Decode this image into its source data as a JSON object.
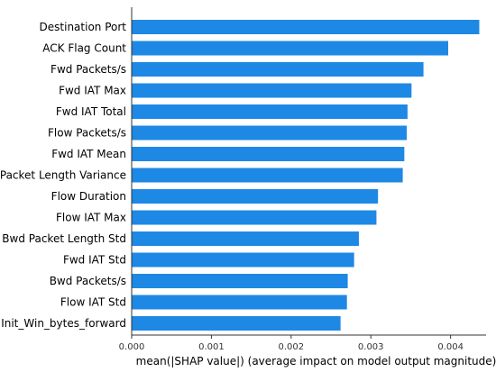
{
  "chart_data": {
    "type": "bar",
    "orientation": "horizontal",
    "categories": [
      "Destination Port",
      "ACK Flag Count",
      "Fwd Packets/s",
      "Fwd IAT Max",
      "Fwd IAT Total",
      "Flow Packets/s",
      "Fwd IAT Mean",
      "Packet Length Variance",
      "Flow Duration",
      "Flow IAT Max",
      "Bwd Packet Length Std",
      "Fwd IAT Std",
      "Bwd Packets/s",
      "Flow IAT Std",
      "Init_Win_bytes_forward"
    ],
    "values": [
      0.00436,
      0.00397,
      0.00366,
      0.00351,
      0.00346,
      0.00345,
      0.00342,
      0.0034,
      0.00309,
      0.00307,
      0.00285,
      0.00279,
      0.00271,
      0.0027,
      0.00262
    ],
    "xlabel": "mean(|SHAP value|) (average impact on model output magnitude)",
    "ylabel": "",
    "title": "",
    "xlim": [
      0,
      0.0044
    ],
    "xticks": [
      0.0,
      0.001,
      0.002,
      0.003,
      0.004
    ],
    "xtick_labels": [
      "0.000",
      "0.001",
      "0.002",
      "0.003",
      "0.004"
    ],
    "grid": false,
    "bar_color": "#1e88e5"
  }
}
